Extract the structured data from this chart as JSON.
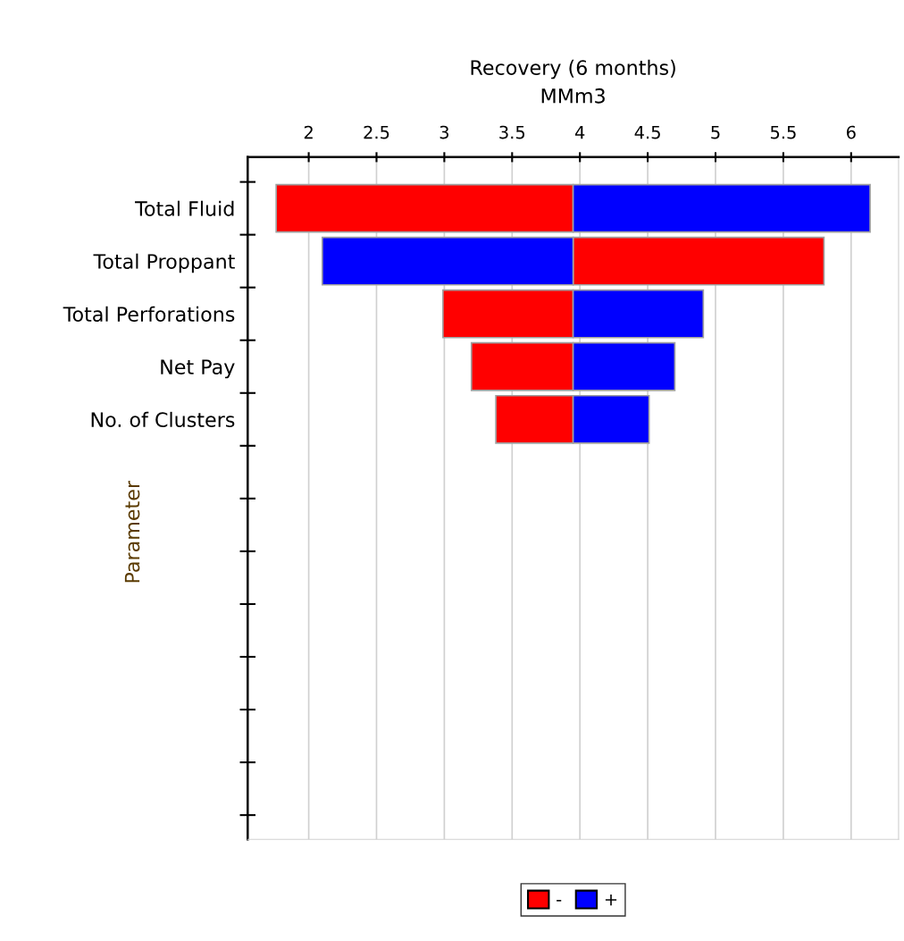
{
  "chart_data": {
    "type": "bar",
    "orientation": "horizontal",
    "xlabel": "Recovery (6 months)\nMMm3",
    "ylabel": "Parameter",
    "categories": [
      "Total Fluid",
      "Total Proppant",
      "Total Perforations",
      "Net Pay",
      "No. of Clusters",
      null,
      null,
      null,
      null,
      null,
      null,
      null
    ],
    "series": [
      {
        "name": "-",
        "color": "#ff0000",
        "base": [
          1.76,
          3.95,
          2.99,
          3.2,
          3.38,
          null,
          null,
          null,
          null,
          null,
          null,
          null
        ],
        "values": [
          2.19,
          1.85,
          0.96,
          0.75,
          0.57,
          null,
          null,
          null,
          null,
          null,
          null,
          null
        ]
      },
      {
        "name": "+",
        "color": "#0000ff",
        "base": [
          3.95,
          2.1,
          3.95,
          3.95,
          3.95,
          null,
          null,
          null,
          null,
          null,
          null,
          null
        ],
        "values": [
          2.19,
          1.85,
          0.96,
          0.75,
          0.56,
          null,
          null,
          null,
          null,
          null,
          null,
          null
        ]
      }
    ],
    "xlim": [
      1.55,
      6.35
    ],
    "xticks": [
      2,
      2.5,
      3,
      3.5,
      4,
      4.5,
      5,
      5.5,
      6
    ],
    "grid": "x",
    "legend": "bottom"
  }
}
